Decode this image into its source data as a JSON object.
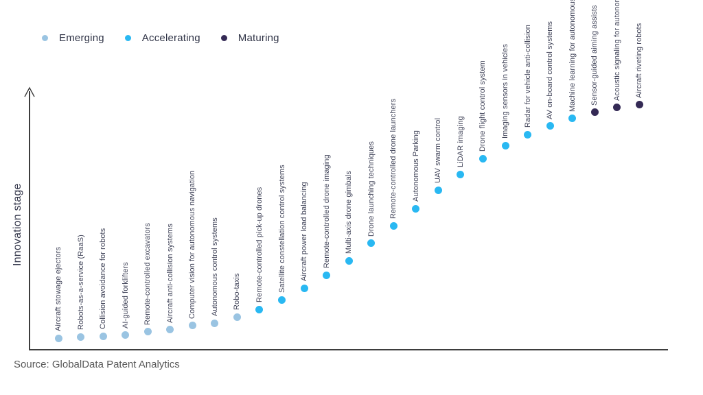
{
  "legend": {
    "items": [
      {
        "label": "Emerging",
        "color": "#9AC4E2"
      },
      {
        "label": "Accelerating",
        "color": "#29B8F2"
      },
      {
        "label": "Maturing",
        "color": "#342A55"
      }
    ]
  },
  "axis": {
    "y_label": "Innovation stage"
  },
  "source": "Source: GlobalData Patent Analytics",
  "chart_data": {
    "type": "scatter",
    "title": "",
    "xlabel": "",
    "ylabel": "Innovation stage",
    "ylim": [
      0,
      100
    ],
    "grid": false,
    "legend_position": "top-left",
    "stages": {
      "Emerging": "#9AC4E2",
      "Accelerating": "#29B8F2",
      "Maturing": "#342A55"
    },
    "points": [
      {
        "label": "Aircraft stowage ejectors",
        "stage": "Emerging",
        "value": 4.5
      },
      {
        "label": "Robots-as-a-service (RaaS)",
        "stage": "Emerging",
        "value": 5.0
      },
      {
        "label": "Collision avoidance for robots",
        "stage": "Emerging",
        "value": 5.3
      },
      {
        "label": "AI-guided forklifters",
        "stage": "Emerging",
        "value": 5.6
      },
      {
        "label": "Remote-controlled excavators",
        "stage": "Emerging",
        "value": 6.9
      },
      {
        "label": "Aircraft anti-collision systems",
        "stage": "Emerging",
        "value": 7.7
      },
      {
        "label": "Computer vision for autonomous navigation",
        "stage": "Emerging",
        "value": 9.3
      },
      {
        "label": "Autonomous control systems",
        "stage": "Emerging",
        "value": 10.3
      },
      {
        "label": "Robo-taxis",
        "stage": "Emerging",
        "value": 12.7
      },
      {
        "label": "Remote-controlled pick-up drones",
        "stage": "Accelerating",
        "value": 15.6
      },
      {
        "label": "Satellite constellation control systems",
        "stage": "Accelerating",
        "value": 19.3
      },
      {
        "label": "Aircraft power load balancing",
        "stage": "Accelerating",
        "value": 23.8
      },
      {
        "label": "Remote-controlled drone imaging",
        "stage": "Accelerating",
        "value": 28.8
      },
      {
        "label": "Multi-axis drone gimbals",
        "stage": "Accelerating",
        "value": 34.4
      },
      {
        "label": "Drone launching techniques",
        "stage": "Accelerating",
        "value": 41.2
      },
      {
        "label": "Remote-controlled drone launchers",
        "stage": "Accelerating",
        "value": 48.0
      },
      {
        "label": "Autonomous Parking",
        "stage": "Accelerating",
        "value": 54.6
      },
      {
        "label": "UAV swarm control",
        "stage": "Accelerating",
        "value": 61.8
      },
      {
        "label": "LiDAR imaging",
        "stage": "Accelerating",
        "value": 67.9
      },
      {
        "label": "Drone flight control system",
        "stage": "Accelerating",
        "value": 74.0
      },
      {
        "label": "Imaging sensors in vehicles",
        "stage": "Accelerating",
        "value": 79.0
      },
      {
        "label": "Radar for vehicle anti-collision",
        "stage": "Accelerating",
        "value": 83.2
      },
      {
        "label": "AV on-board control systems",
        "stage": "Accelerating",
        "value": 86.6
      },
      {
        "label": "Machine learning for autonomous navigation",
        "stage": "Accelerating",
        "value": 89.5
      },
      {
        "label": "Sensor-guided aiming assists",
        "stage": "Maturing",
        "value": 91.9
      },
      {
        "label": "Acoustic signaling for autonomous vehicles",
        "stage": "Maturing",
        "value": 93.7
      },
      {
        "label": "Aircraft riveting robots",
        "stage": "Maturing",
        "value": 94.8
      }
    ]
  }
}
